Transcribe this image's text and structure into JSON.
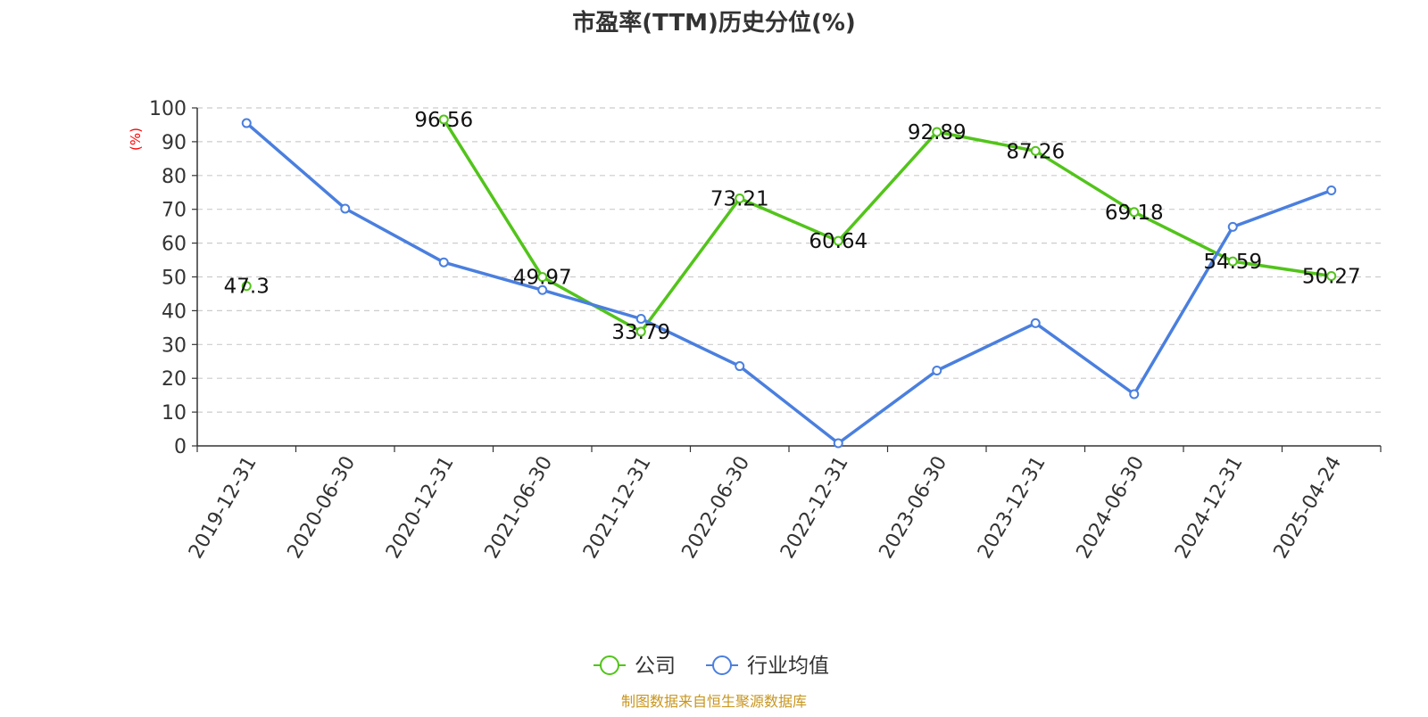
{
  "chart_data": {
    "type": "line",
    "title": "市盈率(TTM)历史分位(%)",
    "ylabel": "(%)",
    "ylim": [
      0,
      100
    ],
    "yticks": [
      0,
      10,
      20,
      30,
      40,
      50,
      60,
      70,
      80,
      90,
      100
    ],
    "categories": [
      "2019-12-31",
      "2020-06-30",
      "2020-12-31",
      "2021-06-30",
      "2021-12-31",
      "2022-06-30",
      "2022-12-31",
      "2023-06-30",
      "2023-12-31",
      "2024-06-30",
      "2024-12-31",
      "2025-04-24"
    ],
    "series": [
      {
        "name": "公司",
        "color": "#52c41a",
        "values": [
          47.3,
          null,
          96.56,
          49.97,
          33.79,
          73.21,
          60.64,
          92.89,
          87.26,
          69.18,
          54.59,
          50.27
        ],
        "labels": [
          "47.3",
          "",
          "96.56",
          "49.97",
          "33.79",
          "73.21",
          "60.64",
          "92.89",
          "87.26",
          "69.18",
          "54.59",
          "50.27"
        ]
      },
      {
        "name": "行业均值",
        "color": "#4a7fdf",
        "values": [
          95.5,
          70.2,
          54.3,
          46.1,
          37.6,
          23.6,
          0.8,
          22.3,
          36.3,
          15.3,
          64.8,
          75.6
        ]
      }
    ],
    "grid": "horizontal-dashed",
    "legend_position": "bottom-center"
  },
  "source": "制图数据来自恒生聚源数据库",
  "colors": {
    "title": "#333333",
    "axis": "#333333",
    "ylabel": "#ff0000",
    "grid": "#cccccc",
    "source": "#c8961e"
  }
}
